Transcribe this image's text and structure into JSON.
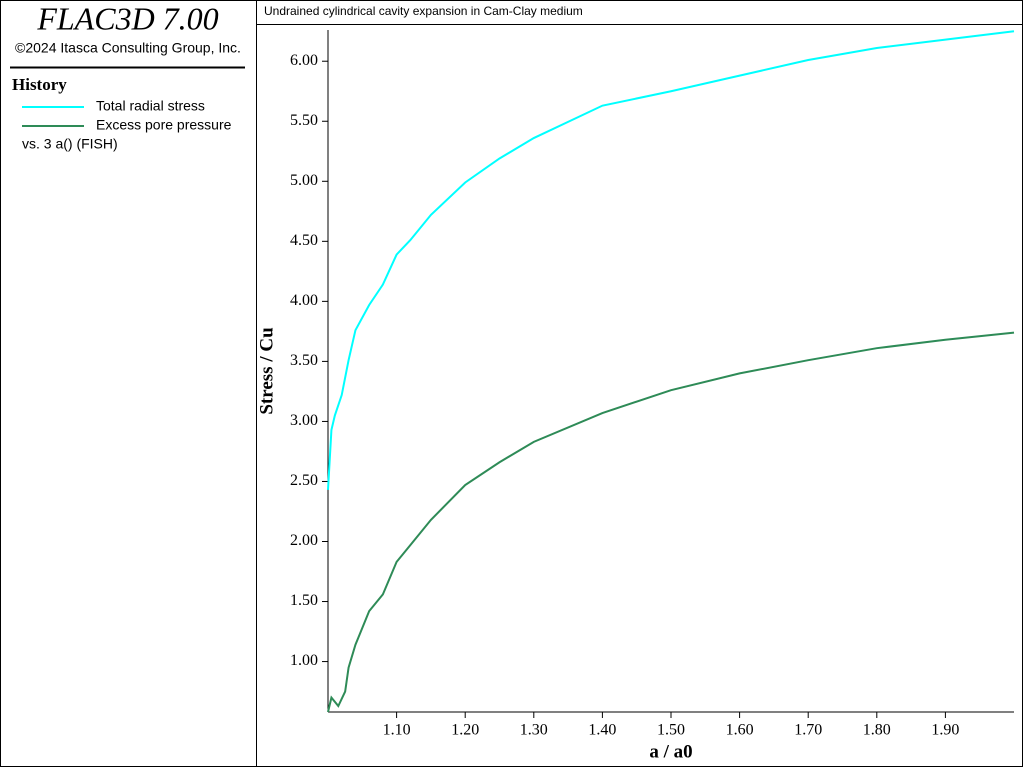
{
  "header": {
    "product": "FLAC3D 7.00",
    "copyright": "©2024 Itasca Consulting Group, Inc.",
    "legend_title": "History",
    "legend_note": "vs. 3 a() (FISH)"
  },
  "chart_data": {
    "type": "line",
    "title": "Undrained cylindrical cavity expansion in Cam-Clay medium",
    "xlabel": "a / a0",
    "ylabel": "Stress / Cu",
    "xlim": [
      1.0,
      2.0
    ],
    "ylim": [
      0.58,
      6.26
    ],
    "xticks": [
      {
        "value": 1.1,
        "label": "1.10"
      },
      {
        "value": 1.2,
        "label": "1.20"
      },
      {
        "value": 1.3,
        "label": "1.30"
      },
      {
        "value": 1.4,
        "label": "1.40"
      },
      {
        "value": 1.5,
        "label": "1.50"
      },
      {
        "value": 1.6,
        "label": "1.60"
      },
      {
        "value": 1.7,
        "label": "1.70"
      },
      {
        "value": 1.8,
        "label": "1.80"
      },
      {
        "value": 1.9,
        "label": "1.90"
      }
    ],
    "yticks": [
      {
        "value": 1,
        "label": "1.00"
      },
      {
        "value": 1.5,
        "label": "1.50"
      },
      {
        "value": 2,
        "label": "2.00"
      },
      {
        "value": 2.5,
        "label": "2.50"
      },
      {
        "value": 3,
        "label": "3.00"
      },
      {
        "value": 3.5,
        "label": "3.50"
      },
      {
        "value": 4,
        "label": "4.00"
      },
      {
        "value": 4.5,
        "label": "4.50"
      },
      {
        "value": 5,
        "label": "5.00"
      },
      {
        "value": 5.5,
        "label": "5.50"
      },
      {
        "value": 6,
        "label": "6.00"
      }
    ],
    "series": [
      {
        "name": "Total radial stress",
        "color": "#00ffff",
        "x": [
          1.0,
          1.005,
          1.01,
          1.02,
          1.03,
          1.04,
          1.06,
          1.08,
          1.1,
          1.12,
          1.15,
          1.2,
          1.25,
          1.3,
          1.4,
          1.5,
          1.6,
          1.7,
          1.8,
          1.9,
          2.0
        ],
        "values": [
          2.43,
          2.93,
          3.05,
          3.22,
          3.51,
          3.76,
          3.97,
          4.14,
          4.39,
          4.51,
          4.72,
          4.99,
          5.19,
          5.36,
          5.63,
          5.75,
          5.88,
          6.01,
          6.11,
          6.18,
          6.25
        ]
      },
      {
        "name": "Excess pore pressure",
        "color": "#2e8b57",
        "x": [
          1.0,
          1.005,
          1.015,
          1.025,
          1.03,
          1.04,
          1.06,
          1.08,
          1.1,
          1.12,
          1.15,
          1.2,
          1.25,
          1.3,
          1.4,
          1.5,
          1.6,
          1.7,
          1.8,
          1.9,
          2.0
        ],
        "values": [
          0.58,
          0.7,
          0.63,
          0.75,
          0.95,
          1.14,
          1.42,
          1.56,
          1.83,
          1.97,
          2.18,
          2.47,
          2.66,
          2.83,
          3.07,
          3.26,
          3.4,
          3.51,
          3.61,
          3.68,
          3.74
        ]
      }
    ]
  }
}
